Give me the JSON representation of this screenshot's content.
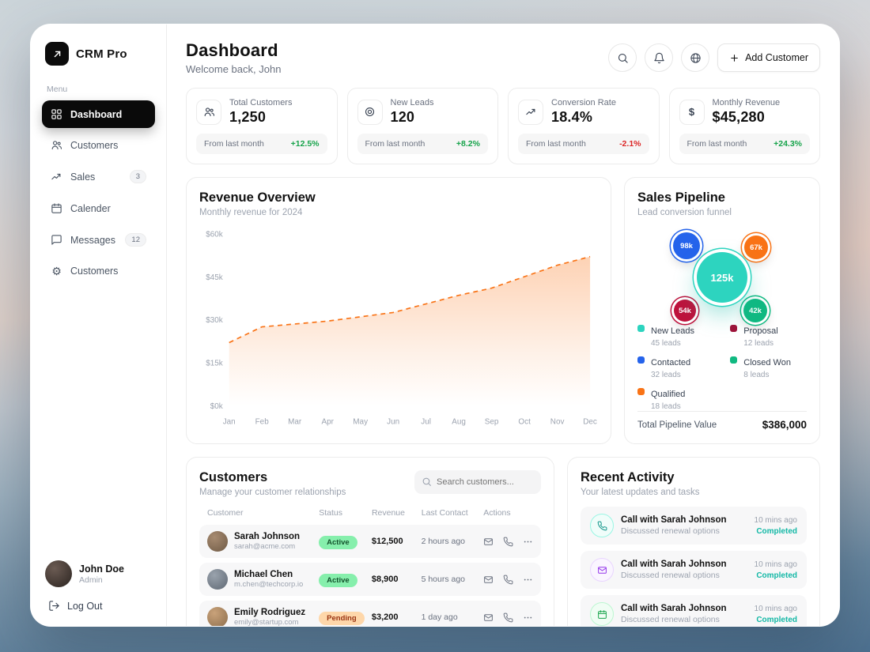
{
  "app": {
    "name": "CRM Pro"
  },
  "sidebar": {
    "menu_label": "Menu",
    "items": [
      {
        "label": "Dashboard",
        "icon": "grid-icon",
        "active": true
      },
      {
        "label": "Customers",
        "icon": "users-icon"
      },
      {
        "label": "Sales",
        "icon": "trend-up-icon",
        "badge": "3"
      },
      {
        "label": "Calender",
        "icon": "calendar-icon"
      },
      {
        "label": "Messages",
        "icon": "chat-icon",
        "badge": "12"
      },
      {
        "label": "Customers",
        "icon": "gear-icon"
      }
    ],
    "user": {
      "name": "John Doe",
      "role": "Admin"
    },
    "logout": "Log Out"
  },
  "header": {
    "title": "Dashboard",
    "subtitle": "Welcome back, John",
    "add_customer": "Add Customer"
  },
  "stats": [
    {
      "label": "Total Customers",
      "value": "1,250",
      "footer": "From last month",
      "delta": "+12.5%",
      "icon": "users-icon"
    },
    {
      "label": "New Leads",
      "value": "120",
      "footer": "From last month",
      "delta": "+8.2%",
      "icon": "target-icon"
    },
    {
      "label": "Conversion Rate",
      "value": "18.4%",
      "footer": "From last month",
      "delta": "-2.1%",
      "icon": "trend-up-icon"
    },
    {
      "label": "Monthly Revenue",
      "value": "$45,280",
      "footer": "From last month",
      "delta": "+24.3%",
      "icon": "dollar-icon"
    }
  ],
  "chart_data": {
    "type": "area",
    "title": "Revenue Overview",
    "subtitle": "Monthly revenue for 2024",
    "x": [
      "Jan",
      "Feb",
      "Mar",
      "Apr",
      "May",
      "Jun",
      "Jul",
      "Aug",
      "Sep",
      "Oct",
      "Nov",
      "Dec"
    ],
    "values": [
      22000,
      27500,
      28500,
      29500,
      31000,
      32500,
      35500,
      38500,
      41000,
      45000,
      49000,
      52000
    ],
    "y_ticks": [
      "$0k",
      "$15k",
      "$30k",
      "$45k",
      "$60k"
    ],
    "ylim": [
      0,
      60000
    ],
    "line_color": "#f97316",
    "line_style": "dashed",
    "grid": false,
    "legend": "none"
  },
  "pipeline": {
    "title": "Sales Pipeline",
    "subtitle": "Lead conversion funnel",
    "center_bubble": {
      "label": "125k",
      "color": "#2dd4bf"
    },
    "bubbles": [
      {
        "label": "98k",
        "color": "#2563eb"
      },
      {
        "label": "67k",
        "color": "#f97316"
      },
      {
        "label": "54k",
        "color": "#be123c"
      },
      {
        "label": "42k",
        "color": "#10b981"
      }
    ],
    "legend": [
      {
        "label": "New Leads",
        "count": "45 leads",
        "color": "#2dd4bf"
      },
      {
        "label": "Proposal",
        "count": "12 leads",
        "color": "#9f1239"
      },
      {
        "label": "Contacted",
        "count": "32 leads",
        "color": "#2563eb"
      },
      {
        "label": "Closed Won",
        "count": "8 leads",
        "color": "#10b981"
      },
      {
        "label": "Qualified",
        "count": "18 leads",
        "color": "#f97316"
      }
    ],
    "total_label": "Total Pipeline Value",
    "total_value": "$386,000"
  },
  "customers": {
    "title": "Customers",
    "subtitle": "Manage your customer relationships",
    "search_placeholder": "Search customers...",
    "columns": [
      "Customer",
      "Status",
      "Revenue",
      "Last Contact",
      "Actions"
    ],
    "rows": [
      {
        "name": "Sarah Johnson",
        "email": "sarah@acme.com",
        "status": "Active",
        "revenue": "$12,500",
        "last_contact": "2 hours ago"
      },
      {
        "name": "Michael Chen",
        "email": "m.chen@techcorp.io",
        "status": "Active",
        "revenue": "$8,900",
        "last_contact": "5 hours ago"
      },
      {
        "name": "Emily Rodriguez",
        "email": "emily@startup.com",
        "status": "Pending",
        "revenue": "$3,200",
        "last_contact": "1 day ago"
      }
    ]
  },
  "activity": {
    "title": "Recent Activity",
    "subtitle": "Your latest updates and tasks",
    "items": [
      {
        "title": "Call with Sarah Johnson",
        "desc": "Discussed renewal options",
        "time": "10 mins ago",
        "status": "Completed",
        "icon": "phone-icon"
      },
      {
        "title": "Call with Sarah Johnson",
        "desc": "Discussed renewal options",
        "time": "10 mins ago",
        "status": "Completed",
        "icon": "mail-icon"
      },
      {
        "title": "Call with Sarah Johnson",
        "desc": "Discussed renewal options",
        "time": "10 mins ago",
        "status": "Completed",
        "icon": "calendar-icon"
      }
    ]
  }
}
